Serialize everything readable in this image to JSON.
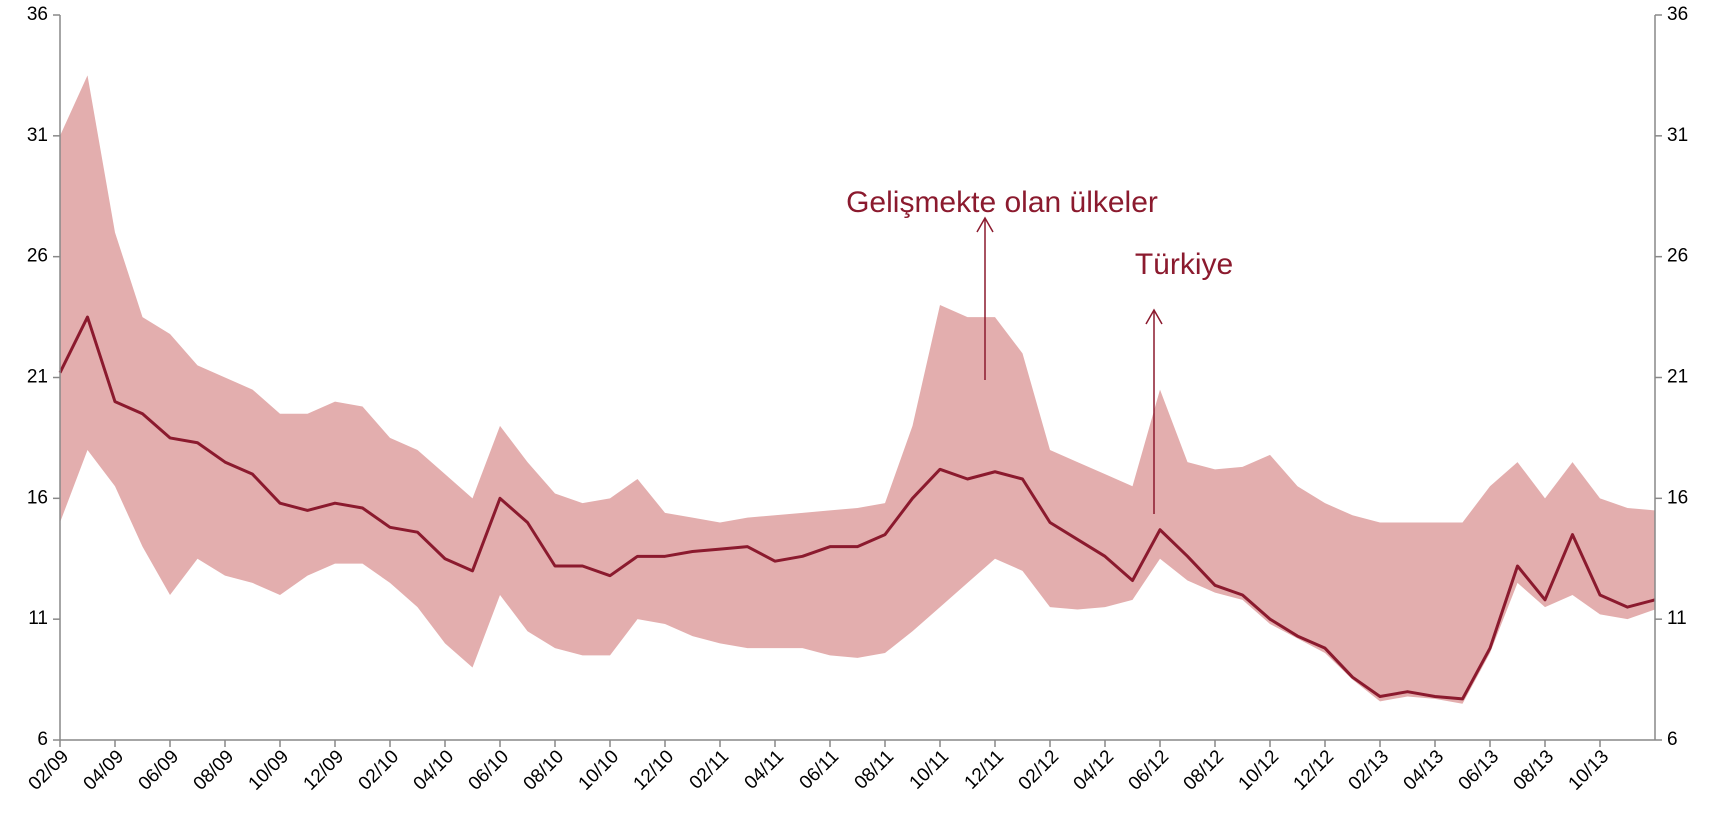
{
  "chart_data": {
    "type": "line",
    "categories": [
      "02/09",
      null,
      "04/09",
      null,
      "06/09",
      null,
      "08/09",
      null,
      "10/09",
      null,
      "12/09",
      null,
      "02/10",
      null,
      "04/10",
      null,
      "06/10",
      null,
      "08/10",
      null,
      "10/10",
      null,
      "12/10",
      null,
      "02/11",
      null,
      "04/11",
      null,
      "06/11",
      null,
      "08/11",
      null,
      "10/11",
      null,
      "12/11",
      null,
      "02/12",
      null,
      "04/12",
      null,
      "06/12",
      null,
      "08/12",
      null,
      "10/12",
      null,
      "12/12",
      null,
      "02/13",
      null,
      "04/13",
      null,
      "06/13",
      null,
      "08/13",
      null,
      "10/13",
      null,
      null
    ],
    "band": {
      "name": "Gelişmekte olan ülkeler",
      "color": "#e3aeae",
      "high": [
        31,
        33.5,
        27,
        23.5,
        22.8,
        21.5,
        21,
        20.5,
        19.5,
        19.5,
        20,
        19.8,
        18.5,
        18,
        17,
        16,
        19,
        17.5,
        16.2,
        15.8,
        16,
        16.8,
        15.4,
        15.2,
        15,
        15.2,
        15.3,
        15.4,
        15.5,
        15.6,
        15.8,
        19,
        24,
        23.5,
        23.5,
        22,
        18,
        17.5,
        17,
        16.5,
        20.5,
        17.5,
        17.2,
        17.3,
        17.8,
        16.5,
        15.8,
        15.3,
        15,
        15,
        15,
        15,
        16.5,
        17.5,
        16,
        17.5,
        16,
        15.6,
        15.5
      ],
      "low": [
        15,
        18,
        16.5,
        14,
        12,
        13.5,
        12.8,
        12.5,
        12,
        12.8,
        13.3,
        13.3,
        12.5,
        11.5,
        10,
        9,
        12,
        10.5,
        9.8,
        9.5,
        9.5,
        11,
        10.8,
        10.3,
        10,
        9.8,
        9.8,
        9.8,
        9.5,
        9.4,
        9.6,
        10.5,
        11.5,
        12.5,
        13.5,
        13,
        11.5,
        11.4,
        11.5,
        11.8,
        13.5,
        12.6,
        12.1,
        11.8,
        10.8,
        10.2,
        9.6,
        8.5,
        7.6,
        7.8,
        7.7,
        7.5,
        9.6,
        12.5,
        11.5,
        12,
        11.2,
        11,
        11.4
      ]
    },
    "series": [
      {
        "name": "Türkiye",
        "color": "#8b1a2e",
        "values": [
          21.2,
          23.5,
          20,
          19.5,
          18.5,
          18.3,
          17.5,
          17,
          15.8,
          15.5,
          15.8,
          15.6,
          14.8,
          14.6,
          13.5,
          13,
          16,
          15,
          13.2,
          13.2,
          12.8,
          13.6,
          13.6,
          13.8,
          13.9,
          14,
          13.4,
          13.6,
          14,
          14,
          14.5,
          16,
          17.2,
          16.8,
          17.1,
          16.8,
          15,
          14.3,
          13.6,
          12.6,
          14.7,
          13.6,
          12.4,
          12,
          11,
          10.3,
          9.8,
          8.6,
          7.8,
          8,
          7.8,
          7.7,
          9.8,
          13.2,
          11.8,
          14.5,
          12,
          11.5,
          11.8
        ]
      }
    ],
    "ylim": [
      6,
      36
    ],
    "yticks": [
      6,
      11,
      16,
      21,
      26,
      31,
      36
    ],
    "y2lim": [
      6,
      36
    ],
    "y2ticks": [
      6,
      11,
      16,
      21,
      26,
      31,
      36
    ]
  }
}
